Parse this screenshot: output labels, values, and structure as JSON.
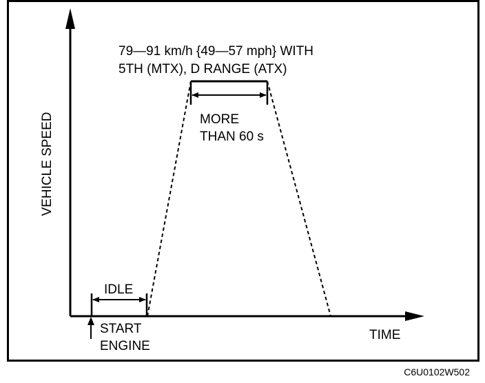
{
  "diagram": {
    "speed_label_line1": "79—91 km/h {49—57 mph} WITH",
    "speed_label_line2": "5TH (MTX), D RANGE (ATX)",
    "duration_line1": "MORE",
    "duration_line2": "THAN 60 s",
    "idle_label": "IDLE",
    "start_line1": "START",
    "start_line2": "ENGINE",
    "y_axis_label": "VEHICLE SPEED",
    "x_axis_label": "TIME",
    "drawing_code": "C6U0102W502"
  }
}
